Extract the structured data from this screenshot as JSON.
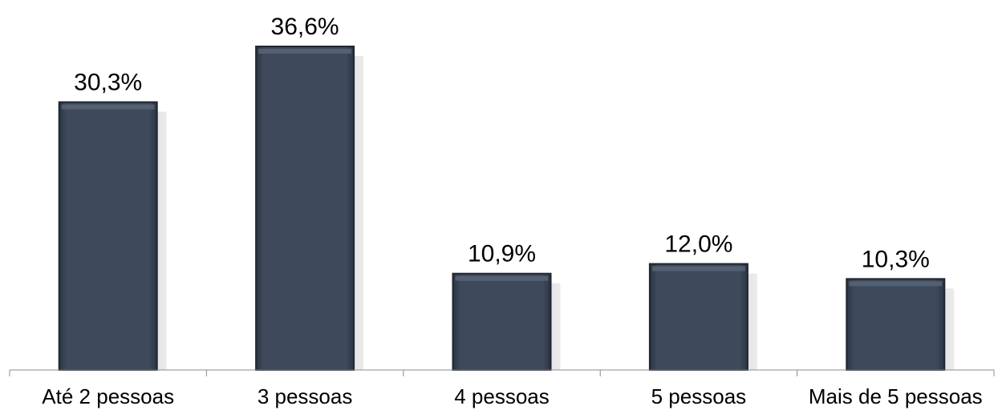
{
  "chart_data": {
    "type": "bar",
    "categories": [
      "Até 2 pessoas",
      "3 pessoas",
      "4 pessoas",
      "5 pessoas",
      "Mais de 5 pessoas"
    ],
    "values": [
      30.3,
      36.6,
      10.9,
      12.0,
      10.3
    ],
    "data_labels": [
      "30,3%",
      "36,6%",
      "10,9%",
      "12,0%",
      "10,3%"
    ],
    "title": "",
    "xlabel": "",
    "ylabel": "",
    "ylim": [
      0,
      36.6
    ],
    "grid": false,
    "legend": "none",
    "colors": {
      "bar": "#3a4556",
      "bar_edge": "#1f2631",
      "bar_highlight": "#5a6678",
      "shadow": "#9a9a9a",
      "axis": "#8c8c8c"
    }
  }
}
